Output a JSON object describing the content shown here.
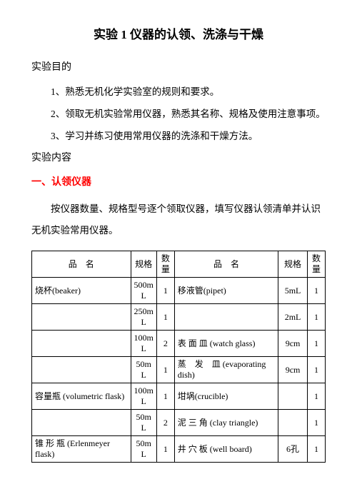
{
  "title": "实验 1 仪器的认领、洗涤与干燥",
  "purpose_heading": "实验目的",
  "purpose_items": [
    "1、熟悉无机化学实验室的规则和要求。",
    "2、领取无机实验常用仪器，熟悉其名称、规格及使用注意事项。",
    "3、学习并练习使用常用仪器的洗涤和干燥方法。"
  ],
  "content_heading": "实验内容",
  "subheading_1": "一、认领仪器",
  "intro_para": "按仪器数量、规格型号逐个领取仪器，填写仪器认领清单并认识无机实验常用仪器。",
  "table": {
    "headers": {
      "name": "品　名",
      "spec": "规格",
      "qty": "数量"
    },
    "rows": [
      {
        "ln": "烧杯(beaker)",
        "ls": "500mL",
        "lq": "1",
        "rn": "移液管(pipet)",
        "rs": "5mL",
        "rq": "1"
      },
      {
        "ln": "",
        "ls": "250mL",
        "lq": "1",
        "rn": "",
        "rs": "2mL",
        "rq": "1"
      },
      {
        "ln": "",
        "ls": "100mL",
        "lq": "2",
        "rn": "表 面 皿 (watch glass)",
        "rs": "9cm",
        "rq": "1"
      },
      {
        "ln": "",
        "ls": "50mL",
        "lq": "1",
        "rn": "蒸　发　皿 (evaporating dish)",
        "rs": "9cm",
        "rq": "1"
      },
      {
        "ln": "容量瓶 (volumetric flask)",
        "ls": "100mL",
        "lq": "1",
        "rn": "坩埚(crucible)",
        "rs": "",
        "rq": "1"
      },
      {
        "ln": "",
        "ls": "50mL",
        "lq": "2",
        "rn": "泥 三 角 (clay triangle)",
        "rs": "",
        "rq": "1"
      },
      {
        "ln": "锥 形 瓶 (Erlenmeyer flask)",
        "ls": "50mL",
        "lq": "1",
        "rn": "井 穴 板 (well board)",
        "rs": "6孔",
        "rq": "1"
      }
    ]
  }
}
